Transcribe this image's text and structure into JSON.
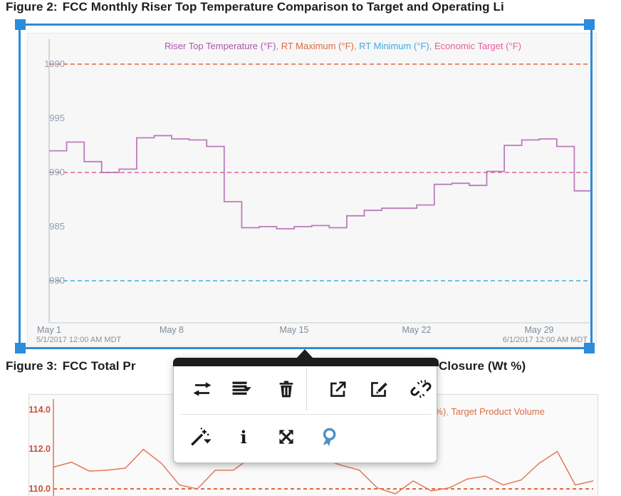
{
  "figure2": {
    "label": "Figure 2:",
    "title": "FCC Monthly Riser Top Temperature Comparison to Target and Operating Li",
    "separator": ", ",
    "legend": [
      {
        "label": "Riser Top Temperature (°F)",
        "color": "#AB57AB"
      },
      {
        "label": "RT Maximum (°F)",
        "color": "#DC6A41"
      },
      {
        "label": "RT Minimum (°F)",
        "color": "#3FA9E0"
      },
      {
        "label": "Economic Target (°F)",
        "color": "#E85C9E"
      }
    ],
    "start_time": "5/1/2017 12:00 AM MDT",
    "end_time": "6/1/2017 12:00 AM MDT"
  },
  "figure3": {
    "label": "Figure 3:",
    "title_left": "FCC Total Pr",
    "title_right": "Closure (Wt %)",
    "legend_fragment_1": "l %)",
    "legend_separator": ", ",
    "legend_fragment_2": "Target Product Volume",
    "legend_color": "#D96C45"
  },
  "popup": {
    "buttons_row1": [
      {
        "name": "switch-symbol",
        "icon": "swap-arrows-icon"
      },
      {
        "name": "trend-options",
        "icon": "list-caret-icon"
      },
      {
        "name": "delete",
        "icon": "trash-icon"
      },
      {
        "name": "open-in-new",
        "icon": "open-new-icon"
      },
      {
        "name": "edit",
        "icon": "edit-pencil-icon"
      },
      {
        "name": "unlink",
        "icon": "broken-link-icon"
      }
    ],
    "buttons_row2": [
      {
        "name": "format",
        "icon": "magic-wand-caret-icon"
      },
      {
        "name": "info",
        "icon": "info-icon"
      },
      {
        "name": "maximize",
        "icon": "expand-arrows-icon"
      },
      {
        "name": "ribbon",
        "icon": "ribbon-award-icon",
        "color": "#4B94C3"
      }
    ],
    "info_glyph": "i"
  },
  "colors": {
    "selection_blue": "#2B8CDB",
    "chart1_bg": "#f7f7f7",
    "chart2_bg": "#fafafa",
    "axis_gray": "#c9c9c9",
    "chart2_axis": "#DD7F5C"
  },
  "chart_data": [
    {
      "type": "line",
      "line_style": "step",
      "title": "FCC Monthly Riser Top Temperature Comparison to Target and Operating Li",
      "x_ticks": [
        "May 1",
        "May 8",
        "May 15",
        "May 22",
        "May 29"
      ],
      "x_range_labels": [
        "5/1/2017 12:00 AM MDT",
        "6/1/2017 12:00 AM MDT"
      ],
      "x": [
        1,
        2,
        3,
        4,
        5,
        6,
        7,
        8,
        9,
        10,
        11,
        12,
        13,
        14,
        15,
        16,
        17,
        18,
        19,
        20,
        21,
        22,
        23,
        24,
        25,
        26,
        27,
        28,
        29,
        30,
        31
      ],
      "series": [
        {
          "name": "Riser Top Temperature (°F)",
          "color": "#B266B2",
          "style": "step",
          "values": [
            992.0,
            992.8,
            991.0,
            990.0,
            990.3,
            993.2,
            993.4,
            993.1,
            993.0,
            992.4,
            987.3,
            984.9,
            985.0,
            984.8,
            985.0,
            985.1,
            984.9,
            986.0,
            986.5,
            986.7,
            986.7,
            987.0,
            988.9,
            989.0,
            988.8,
            990.1,
            992.5,
            993.0,
            993.1,
            992.4,
            988.3
          ]
        }
      ],
      "reference_lines": [
        {
          "name": "RT Maximum (°F)",
          "value": 1000,
          "color": "#DC6A41",
          "style": "dashed"
        },
        {
          "name": "Economic Target (°F)",
          "value": 990,
          "color": "#EA5F9D",
          "style": "dashed"
        },
        {
          "name": "RT Minimum (°F)",
          "value": 980,
          "color": "#44ACE8",
          "style": "dashed"
        }
      ],
      "y_ticks": [
        1000,
        995,
        990,
        985,
        980
      ],
      "ylim": [
        976,
        1002
      ],
      "legend_position": "top"
    },
    {
      "type": "line",
      "title": "FCC Total Pr… …Closure (Wt %)",
      "series": [
        {
          "name_fragment": "l %)",
          "color": "#E2795A",
          "values": [
            111.1,
            111.35,
            110.9,
            110.95,
            111.05,
            112.0,
            111.3,
            110.2,
            110.0,
            110.95,
            110.95,
            111.6,
            112.0,
            112.1,
            111.8,
            111.5,
            111.2,
            110.95,
            110.05,
            109.75,
            110.4,
            109.9,
            110.05,
            110.5,
            110.65,
            110.2,
            110.45,
            111.3,
            111.9,
            110.2,
            110.4
          ]
        }
      ],
      "reference_lines": [
        {
          "name": "Target Product Volume",
          "value": 110.0,
          "color": "#DC6A41",
          "style": "dashed"
        }
      ],
      "y_ticks": [
        "114.0",
        "112.0",
        "110.0"
      ],
      "ylim": [
        109.4,
        114.6
      ],
      "legend_position": "top-right"
    }
  ]
}
